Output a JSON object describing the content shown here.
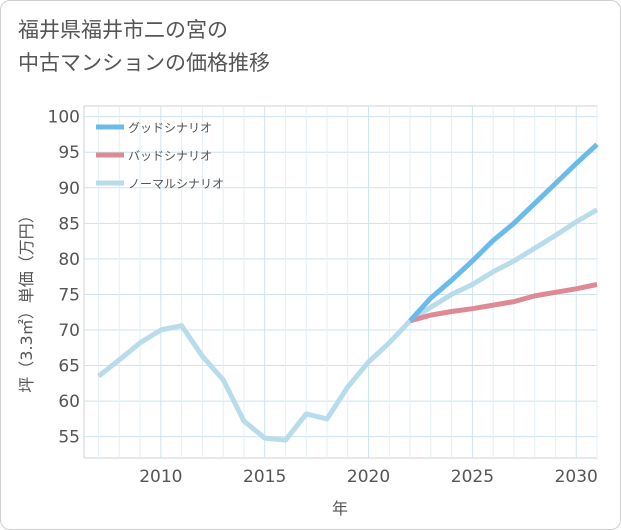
{
  "title_lines": [
    "福井県福井市二の宮の",
    "中古マンションの価格推移"
  ],
  "chart_data": {
    "type": "line",
    "xlabel": "年",
    "ylabel": "坪（3.3㎡）単価（万円）",
    "xlim": [
      2006.3,
      2031
    ],
    "ylim": [
      52,
      101.5
    ],
    "x_ticks": [
      2010,
      2015,
      2020,
      2025,
      2030
    ],
    "y_ticks": [
      55,
      60,
      65,
      70,
      75,
      80,
      85,
      90,
      95,
      100
    ],
    "grid": true,
    "legend_position": "top-left",
    "series": [
      {
        "name": "グッドシナリオ",
        "color": "#6bbbea",
        "x": [
          2022,
          2023,
          2024,
          2025,
          2026,
          2027,
          2028,
          2029,
          2030,
          2031
        ],
        "y": [
          71.3,
          74.5,
          77.0,
          79.7,
          82.6,
          85.0,
          87.8,
          90.6,
          93.4,
          96.1
        ]
      },
      {
        "name": "バッドシナリオ",
        "color": "#de8a95",
        "x": [
          2022,
          2023,
          2024,
          2025,
          2026,
          2027,
          2028,
          2029,
          2030,
          2031
        ],
        "y": [
          71.3,
          72.1,
          72.6,
          73.0,
          73.5,
          74.0,
          74.8,
          75.3,
          75.8,
          76.4
        ]
      },
      {
        "name": "ノーマルシナリオ",
        "color": "#b8dceb",
        "x": [
          2007,
          2008,
          2009,
          2010,
          2011,
          2012,
          2013,
          2014,
          2015,
          2016,
          2017,
          2018,
          2019,
          2020,
          2021,
          2022,
          2023,
          2024,
          2025,
          2026,
          2027,
          2028,
          2029,
          2030,
          2031
        ],
        "y": [
          63.5,
          65.8,
          68.2,
          70.0,
          70.6,
          66.3,
          63.0,
          57.2,
          54.8,
          54.5,
          58.2,
          57.5,
          62.0,
          65.5,
          68.2,
          71.3,
          73.2,
          75.0,
          76.4,
          78.2,
          79.7,
          81.5,
          83.3,
          85.2,
          86.9
        ]
      }
    ]
  }
}
